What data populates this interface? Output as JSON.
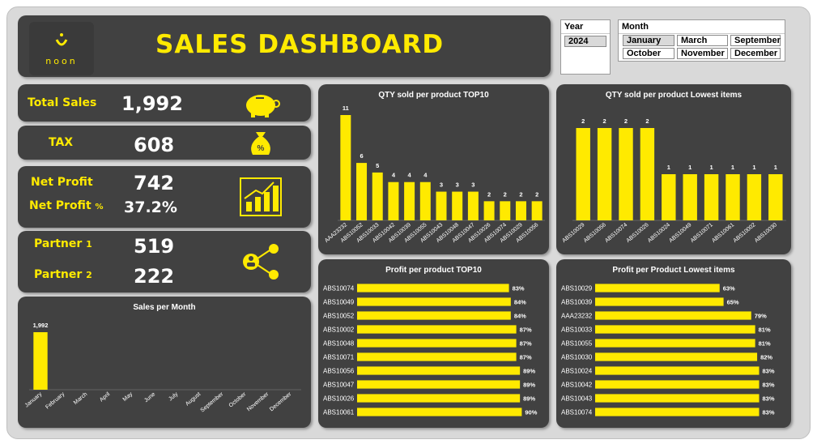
{
  "header": {
    "title": "SALES DASHBOARD",
    "logo_text": "noon"
  },
  "slicers": {
    "year": {
      "label": "Year",
      "options": [
        "2024"
      ],
      "selected": "2024"
    },
    "month": {
      "label": "Month",
      "options": [
        "January",
        "March",
        "September",
        "October",
        "November",
        "December"
      ],
      "selected": "January"
    }
  },
  "kpis": {
    "total_sales": {
      "label": "Total Sales",
      "value": "1,992"
    },
    "tax": {
      "label": "TAX",
      "value": "608"
    },
    "net_profit": {
      "label": "Net Profit",
      "value": "742"
    },
    "net_profit_pct": {
      "label": "Net Profit",
      "suffix": "%",
      "value": "37.2%"
    },
    "partner1": {
      "label": "Partner",
      "num": "1",
      "value": "519"
    },
    "partner2": {
      "label": "Partner",
      "num": "2",
      "value": "222"
    }
  },
  "colors": {
    "panel": "#414141",
    "accent": "#ffea00",
    "frame": "#d9d9d9"
  },
  "icons": {
    "total_sales": "piggy-bank-icon",
    "tax": "money-bag-icon",
    "net_profit": "growth-chart-icon",
    "partners": "share-users-icon"
  },
  "chart_data": [
    {
      "type": "bar",
      "title": "Sales per Month",
      "categories": [
        "January",
        "February",
        "March",
        "April",
        "May",
        "June",
        "July",
        "August",
        "September",
        "October",
        "November",
        "December"
      ],
      "values": [
        1992,
        null,
        null,
        null,
        null,
        null,
        null,
        null,
        null,
        null,
        null,
        null
      ],
      "labels": [
        "1,992",
        "",
        "",
        "",
        "",
        "",
        "",
        "",
        "",
        "",
        "",
        ""
      ]
    },
    {
      "type": "bar",
      "title": "QTY sold per product TOP10",
      "categories": [
        "AAA23232",
        "ABS10052",
        "ABS10033",
        "ABS10042",
        "ABS10039",
        "ABS10055",
        "ABS10043",
        "ABS10048",
        "ABS10047",
        "ABS10026",
        "ABS10074",
        "ABS10029",
        "ABS10056"
      ],
      "values": [
        11,
        6,
        5,
        4,
        4,
        4,
        3,
        3,
        3,
        2,
        2,
        2,
        2
      ]
    },
    {
      "type": "bar",
      "title": "QTY sold per product Lowest items",
      "categories": [
        "ABS10029",
        "ABS10056",
        "ABS10074",
        "ABS10026",
        "ABS10024",
        "ABS10049",
        "ABS10071",
        "ABS10061",
        "ABS10002",
        "ABS10030"
      ],
      "values": [
        2,
        2,
        2,
        2,
        1,
        1,
        1,
        1,
        1,
        1
      ]
    },
    {
      "type": "bar",
      "orientation": "horizontal",
      "title": "Profit per product TOP10",
      "categories": [
        "ABS10074",
        "ABS10049",
        "ABS10052",
        "ABS10002",
        "ABS10048",
        "ABS10071",
        "ABS10056",
        "ABS10047",
        "ABS10026",
        "ABS10061"
      ],
      "values": [
        83,
        84,
        84,
        87,
        87,
        87,
        89,
        89,
        89,
        90
      ]
    },
    {
      "type": "bar",
      "orientation": "horizontal",
      "title": "Profit per Product Lowest items",
      "categories": [
        "ABS10029",
        "ABS10039",
        "AAA23232",
        "ABS10033",
        "ABS10055",
        "ABS10030",
        "ABS10024",
        "ABS10042",
        "ABS10043",
        "ABS10074"
      ],
      "values": [
        63,
        65,
        79,
        81,
        81,
        82,
        83,
        83,
        83,
        83
      ]
    }
  ]
}
